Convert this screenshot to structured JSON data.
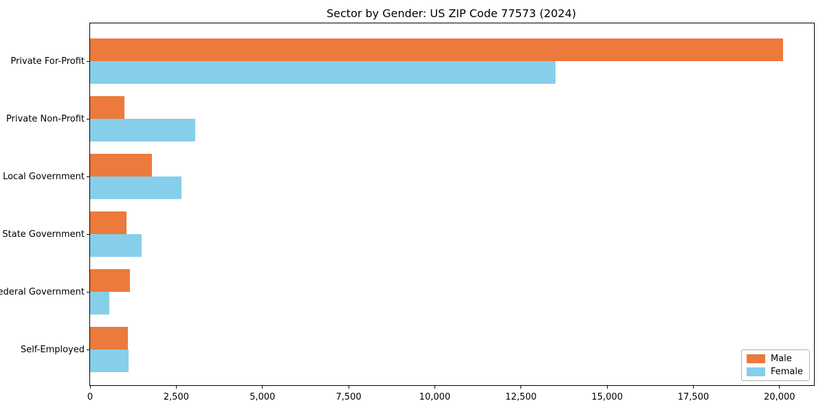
{
  "chart_data": {
    "type": "bar",
    "orientation": "horizontal",
    "title": "Sector by Gender: US ZIP Code 77573 (2024)",
    "categories": [
      "Private For-Profit",
      "Private Non-Profit",
      "Local Government",
      "State Government",
      "Federal Government",
      "Self-Employed"
    ],
    "series": [
      {
        "name": "Male",
        "color": "#EB7A3C",
        "values": [
          20100,
          1000,
          1800,
          1050,
          1150,
          1100
        ]
      },
      {
        "name": "Female",
        "color": "#87CEEB",
        "values": [
          13500,
          3050,
          2650,
          1500,
          550,
          1120
        ]
      }
    ],
    "xlabel": "",
    "ylabel": "",
    "xlim": [
      0,
      21000
    ],
    "xticks": [
      0,
      2500,
      5000,
      7500,
      10000,
      12500,
      15000,
      17500,
      20000
    ],
    "xtick_labels": [
      "0",
      "2,500",
      "5,000",
      "7,500",
      "10,000",
      "12,500",
      "15,000",
      "17,500",
      "20,000"
    ],
    "grid": false,
    "legend": {
      "position": "lower right",
      "entries": [
        "Male",
        "Female"
      ]
    }
  }
}
